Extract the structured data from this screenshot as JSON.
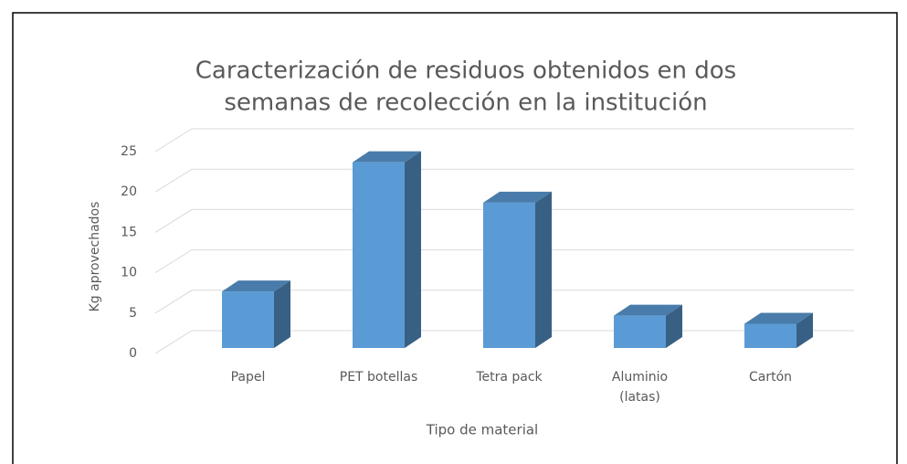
{
  "chart_data": {
    "type": "bar",
    "title": [
      "Caracterización de residuos obtenidos en dos",
      "semanas de recolección en la institución"
    ],
    "x_label": "Tipo de material",
    "y_label": "Kg aprovechados",
    "categories": [
      "Papel",
      "PET botellas",
      "Tetra pack",
      "Aluminio (latas)",
      "Cartón"
    ],
    "values": [
      7,
      23,
      18,
      4,
      3
    ],
    "color": "#5b9bd5",
    "ylim": [
      0,
      25
    ],
    "yticks": [
      0,
      5,
      10,
      15,
      20,
      25
    ],
    "grid": true
  }
}
